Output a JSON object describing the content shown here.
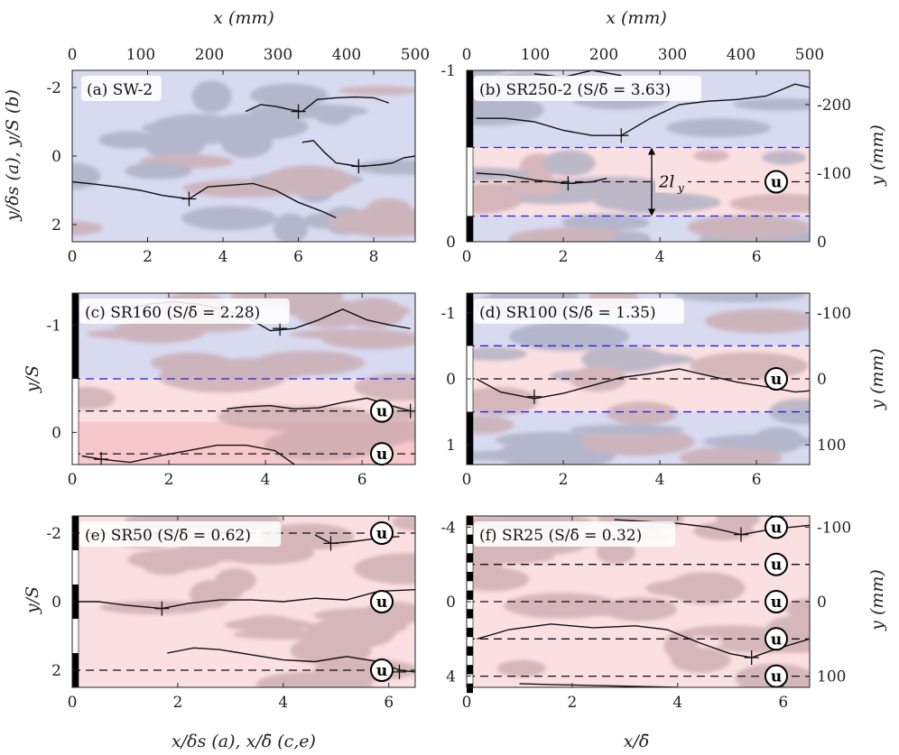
{
  "colors": {
    "blue_region": "#d8daf0",
    "pink_region": "#fbe0e2",
    "pink_band": "#f7c8cb",
    "blob": "#a9abbf",
    "blob_on_pink": "#c9a8ad",
    "dashed_blue": "#2222dd",
    "dashed_black": "#111111",
    "line": "#111111"
  },
  "labels": {
    "x_top_left": "x (mm)",
    "x_top_right": "x (mm)",
    "y_a_b": "y/δs (a), y/S (b)",
    "y_c": "y/S",
    "y_e": "y/S",
    "y_right_b": "y (mm)",
    "y_right_d": "y (mm)",
    "y_right_f": "y (mm)",
    "x_bottom_left": "x/δs (a), x/δ̄ (c,e)",
    "x_bottom_right": "x/δ̄",
    "two_ly": "2l",
    "two_ly_sub": "y",
    "u_marker": "u"
  },
  "chart_data": [
    {
      "id": "a",
      "type": "line",
      "title": "(a) SW-2",
      "xlim": [
        0,
        9.1
      ],
      "ylim": [
        -2.5,
        2.5
      ],
      "y_inverted": true,
      "x_ticks": [
        0,
        2,
        4,
        6,
        8
      ],
      "y_ticks": [
        -2,
        0,
        2
      ],
      "top_axis": {
        "label": "x (mm)",
        "ticks": [
          0,
          100,
          200,
          300,
          400,
          500
        ],
        "lim": [
          0,
          500
        ]
      },
      "regions": [
        {
          "from": -2.5,
          "to": 2.5,
          "color": "blue"
        }
      ],
      "series": [
        {
          "x": [
            0,
            0.6,
            1.2,
            1.8,
            2.4,
            3.1,
            3.6,
            4.2,
            4.8,
            5.4,
            6.0,
            6.6,
            7.0
          ],
          "y": [
            0.75,
            0.82,
            0.9,
            1.0,
            1.15,
            1.25,
            0.9,
            0.85,
            0.8,
            1.0,
            1.35,
            1.6,
            1.8
          ]
        },
        {
          "x": [
            4.6,
            5.0,
            5.4,
            5.8,
            6.1,
            6.5,
            7.0,
            7.5,
            8.0,
            8.4
          ],
          "y": [
            -1.3,
            -1.5,
            -1.45,
            -1.35,
            -1.3,
            -1.65,
            -1.7,
            -1.72,
            -1.7,
            -1.55
          ]
        },
        {
          "x": [
            6.1,
            6.4,
            6.7,
            7.0,
            7.3,
            7.6,
            7.9,
            8.2,
            8.5,
            8.8,
            9.1
          ],
          "y": [
            -0.4,
            -0.45,
            -0.1,
            0.2,
            0.25,
            0.3,
            0.28,
            0.25,
            0.2,
            0.05,
            0.0
          ]
        }
      ],
      "markers": [
        {
          "x": 3.1,
          "y": 1.25
        },
        {
          "x": 6.0,
          "y": -1.3
        },
        {
          "x": 7.6,
          "y": 0.3
        }
      ],
      "dashed": [],
      "u_markers": []
    },
    {
      "id": "b",
      "type": "line",
      "title": "(b) SR250-2 (S/δ̄ = 3.63)",
      "xlim": [
        0,
        7.1
      ],
      "ylim": [
        -1,
        0
      ],
      "y_inverted": true,
      "x_ticks": [
        0,
        2,
        4,
        6
      ],
      "y_ticks": [
        -1,
        0
      ],
      "top_axis": {
        "label": "x (mm)",
        "ticks": [
          0,
          100,
          200,
          300,
          400,
          500
        ],
        "lim": [
          0,
          500
        ]
      },
      "right_axis": {
        "label": "y (mm)",
        "ticks": [
          -200,
          -100,
          0
        ],
        "lim": [
          -250,
          0
        ]
      },
      "regions": [
        {
          "from": -1,
          "to": -0.55,
          "color": "blue"
        },
        {
          "from": -0.55,
          "to": -0.15,
          "color": "pink"
        },
        {
          "from": -0.15,
          "to": 0,
          "color": "blue"
        }
      ],
      "series": [
        {
          "x": [
            0.2,
            0.8,
            1.4,
            2.0,
            2.6,
            3.2,
            3.8,
            4.4,
            5.0,
            5.6,
            6.2,
            6.8,
            7.1
          ],
          "y": [
            -0.72,
            -0.72,
            -0.7,
            -0.65,
            -0.62,
            -0.62,
            -0.72,
            -0.8,
            -0.82,
            -0.83,
            -0.85,
            -0.92,
            -0.9
          ]
        },
        {
          "x": [
            0.2,
            0.8,
            1.4,
            2.1,
            2.6,
            2.9
          ],
          "y": [
            -0.4,
            -0.39,
            -0.36,
            -0.34,
            -0.35,
            -0.37
          ]
        },
        {
          "x": [
            1.4,
            2.0,
            2.6,
            3.2
          ],
          "y": [
            -0.98,
            -0.96,
            -1.0,
            -0.97
          ]
        }
      ],
      "markers": [
        {
          "x": 3.2,
          "y": -0.62
        },
        {
          "x": 2.1,
          "y": -0.34
        }
      ],
      "dashed": [
        {
          "y": -0.55,
          "color": "blue"
        },
        {
          "y": -0.35,
          "color": "black"
        },
        {
          "y": -0.15,
          "color": "blue"
        }
      ],
      "u_markers": [
        {
          "y": -0.35
        }
      ]
    },
    {
      "id": "c",
      "type": "line",
      "title": "(c) SR160 (S/δ̄ = 2.28)",
      "xlim": [
        0,
        7.1
      ],
      "ylim": [
        -1.3,
        0.3
      ],
      "y_inverted": true,
      "x_ticks": [
        0,
        2,
        4,
        6
      ],
      "y_ticks": [
        -1,
        0
      ],
      "right_axis": {
        "label": "y (mm)",
        "ticks": [],
        "lim": [
          0,
          1
        ]
      },
      "regions": [
        {
          "from": -1.3,
          "to": -0.5,
          "color": "blue"
        },
        {
          "from": -0.5,
          "to": 0.3,
          "color": "pink"
        },
        {
          "from": -0.1,
          "to": 0.3,
          "color": "pinkband"
        }
      ],
      "series": [
        {
          "x": [
            1.1,
            1.6,
            2.1,
            2.6,
            3.1,
            3.6,
            4.1,
            4.6,
            5.1,
            5.6,
            6.1,
            6.6,
            7.0
          ],
          "y": [
            -1.15,
            -1.2,
            -1.22,
            -1.2,
            -1.15,
            -1.08,
            -0.95,
            -0.97,
            -1.05,
            -1.15,
            -1.05,
            -1.0,
            -0.97
          ]
        },
        {
          "x": [
            3.2,
            3.6,
            4.1,
            4.6,
            5.1,
            5.6,
            6.1,
            6.6,
            7.0
          ],
          "y": [
            -0.22,
            -0.24,
            -0.25,
            -0.22,
            -0.23,
            -0.28,
            -0.32,
            -0.25,
            -0.2
          ]
        },
        {
          "x": [
            0.2,
            0.6,
            1.2,
            1.8,
            2.4,
            3.0,
            3.6,
            4.2,
            4.6
          ],
          "y": [
            0.22,
            0.25,
            0.28,
            0.22,
            0.17,
            0.12,
            0.12,
            0.17,
            0.3
          ]
        }
      ],
      "markers": [
        {
          "x": 4.3,
          "y": -0.97
        },
        {
          "x": 7.0,
          "y": -0.2
        },
        {
          "x": 0.6,
          "y": 0.25
        }
      ],
      "dashed": [
        {
          "y": -0.5,
          "color": "blue"
        },
        {
          "y": -0.2,
          "color": "black"
        },
        {
          "y": 0.2,
          "color": "black"
        }
      ],
      "u_markers": [
        {
          "y": -0.2
        },
        {
          "y": 0.2
        }
      ]
    },
    {
      "id": "d",
      "type": "line",
      "title": "(d) SR100 (S/δ̄ = 1.35)",
      "xlim": [
        0,
        7.1
      ],
      "ylim": [
        -1.3,
        1.3
      ],
      "y_inverted": true,
      "x_ticks": [
        0,
        2,
        4,
        6
      ],
      "y_ticks": [
        -1,
        0,
        1
      ],
      "right_axis": {
        "label": "y (mm)",
        "ticks": [
          -100,
          0,
          100
        ],
        "lim": [
          -130,
          130
        ]
      },
      "regions": [
        {
          "from": -1.3,
          "to": -0.5,
          "color": "blue"
        },
        {
          "from": -0.5,
          "to": 0.5,
          "color": "pink"
        },
        {
          "from": 0.5,
          "to": 1.3,
          "color": "blue"
        }
      ],
      "series": [
        {
          "x": [
            0.2,
            0.7,
            1.4,
            2.0,
            2.6,
            3.2,
            3.8,
            4.4,
            5.0,
            5.6,
            6.2,
            6.8,
            7.1
          ],
          "y": [
            0.0,
            0.2,
            0.3,
            0.22,
            0.1,
            -0.02,
            -0.08,
            -0.15,
            -0.05,
            0.05,
            0.12,
            0.2,
            0.18
          ]
        }
      ],
      "markers": [
        {
          "x": 1.4,
          "y": 0.27
        }
      ],
      "dashed": [
        {
          "y": -0.5,
          "color": "blue"
        },
        {
          "y": 0,
          "color": "black"
        },
        {
          "y": 0.5,
          "color": "blue"
        }
      ],
      "u_markers": [
        {
          "y": 0
        }
      ]
    },
    {
      "id": "e",
      "type": "line",
      "title": "(e) SR50 (S/δ̄ = 0.62)",
      "xlim": [
        0,
        6.5
      ],
      "ylim": [
        -2.5,
        2.5
      ],
      "y_inverted": true,
      "x_ticks": [
        0,
        2,
        4,
        6
      ],
      "y_ticks": [
        -2,
        0,
        2
      ],
      "regions": [
        {
          "from": -2.5,
          "to": 2.5,
          "color": "pink"
        }
      ],
      "series": [
        {
          "x": [
            0,
            0.5,
            1.0,
            1.7,
            2.2,
            2.8,
            3.4,
            4.0,
            4.6,
            5.2,
            5.8,
            6.5
          ],
          "y": [
            0.0,
            0.0,
            0.1,
            0.2,
            0.05,
            -0.05,
            -0.05,
            0.0,
            -0.1,
            -0.05,
            -0.3,
            -0.35
          ]
        },
        {
          "x": [
            1.8,
            2.3,
            2.8,
            3.4,
            4.0,
            4.6,
            5.2,
            5.8,
            6.2,
            6.5
          ],
          "y": [
            1.5,
            1.35,
            1.4,
            1.55,
            1.7,
            1.75,
            1.6,
            1.75,
            2.0,
            2.05
          ]
        },
        {
          "x": [
            4.6,
            4.9,
            5.3,
            5.8,
            6.2
          ],
          "y": [
            -1.95,
            -1.7,
            -1.75,
            -1.85,
            -1.9
          ]
        }
      ],
      "markers": [
        {
          "x": 1.7,
          "y": 0.2
        },
        {
          "x": 4.9,
          "y": -1.7
        },
        {
          "x": 6.2,
          "y": 2.05
        }
      ],
      "dashed": [
        {
          "y": -2,
          "color": "black"
        },
        {
          "y": 2,
          "color": "black"
        }
      ],
      "u_markers": [
        {
          "y": -2
        },
        {
          "y": 0
        },
        {
          "y": 2
        }
      ]
    },
    {
      "id": "f",
      "type": "line",
      "title": "(f) SR25 (S/δ̄ = 0.32)",
      "xlim": [
        0,
        6.5
      ],
      "ylim": [
        -4.6,
        4.6
      ],
      "y_inverted": true,
      "x_ticks": [
        0,
        2,
        4,
        6
      ],
      "y_ticks": [
        -4,
        0,
        4
      ],
      "right_axis": {
        "label": "y (mm)",
        "ticks": [
          -100,
          0,
          100
        ],
        "lim": [
          -115,
          115
        ]
      },
      "regions": [
        {
          "from": -4.6,
          "to": 4.6,
          "color": "pink"
        }
      ],
      "series": [
        {
          "x": [
            0.2,
            0.8,
            1.6,
            2.4,
            3.2,
            3.8,
            4.4,
            5.0,
            5.4,
            5.8,
            6.5
          ],
          "y": [
            2.0,
            1.5,
            1.2,
            1.4,
            1.3,
            1.5,
            2.2,
            2.8,
            3.0,
            2.6,
            2.0
          ]
        },
        {
          "x": [
            2.8,
            3.4,
            4.0,
            4.6,
            5.2,
            5.8,
            6.5
          ],
          "y": [
            -4.4,
            -4.3,
            -4.2,
            -4.0,
            -3.6,
            -3.9,
            -4.1
          ]
        },
        {
          "x": [
            1.0,
            1.6,
            2.4,
            3.2,
            4.0
          ],
          "y": [
            4.4,
            4.45,
            4.5,
            4.55,
            4.6
          ]
        }
      ],
      "markers": [
        {
          "x": 5.2,
          "y": -3.6
        },
        {
          "x": 5.4,
          "y": 3.0
        }
      ],
      "dashed": [
        {
          "y": -2,
          "color": "black"
        },
        {
          "y": 0,
          "color": "black"
        },
        {
          "y": 2,
          "color": "black"
        },
        {
          "y": 4,
          "color": "black"
        }
      ],
      "u_markers": [
        {
          "y": -4
        },
        {
          "y": -2
        },
        {
          "y": 0
        },
        {
          "y": 2
        },
        {
          "y": 4
        }
      ]
    }
  ]
}
